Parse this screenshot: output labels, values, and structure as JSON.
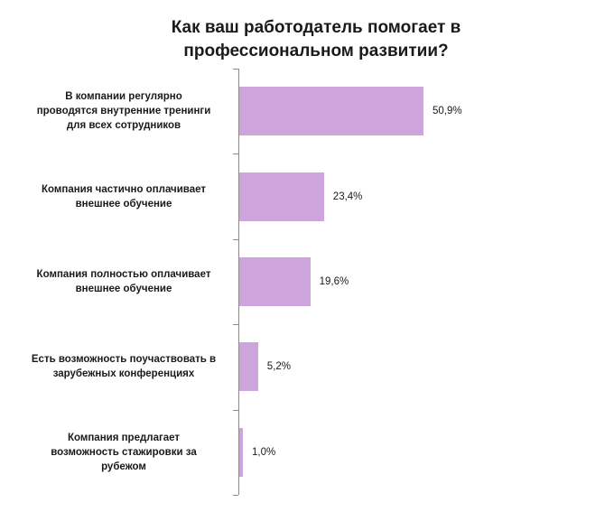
{
  "chart_data": {
    "type": "bar",
    "orientation": "horizontal",
    "title": "Как ваш работодатель помогает в профессиональном развитии?",
    "title_lines": [
      "Как ваш работодатель помогает в",
      "профессиональном развитии?"
    ],
    "categories": [
      "В компании регулярно проводятся внутренние тренинги для всех сотрудников",
      "Компания частично оплачивает внешнее обучение",
      "Компания полностью оплачивает внешнее обучение",
      "Есть возможность поучаствовать в зарубежных конференциях",
      "Компания предлагает возможность стажировки за рубежом"
    ],
    "category_lines": [
      [
        "В компании регулярно",
        "проводятся внутренние тренинги",
        "для всех сотрудников"
      ],
      [
        "Компания частично оплачивает",
        "внешнее обучение"
      ],
      [
        "Компания полностью оплачивает",
        "внешнее обучение"
      ],
      [
        "Есть возможность поучаствовать в",
        "зарубежных конференциях"
      ],
      [
        "Компания предлагает",
        "возможность стажировки за",
        "рубежом"
      ]
    ],
    "values": [
      50.9,
      23.4,
      19.6,
      5.2,
      1.0
    ],
    "value_labels": [
      "50,9%",
      "23,4%",
      "19,6%",
      "5,2%",
      "1,0%"
    ],
    "bar_color": "#cda5dc",
    "xlim": [
      0,
      100
    ],
    "grid": false,
    "legend": "none"
  }
}
